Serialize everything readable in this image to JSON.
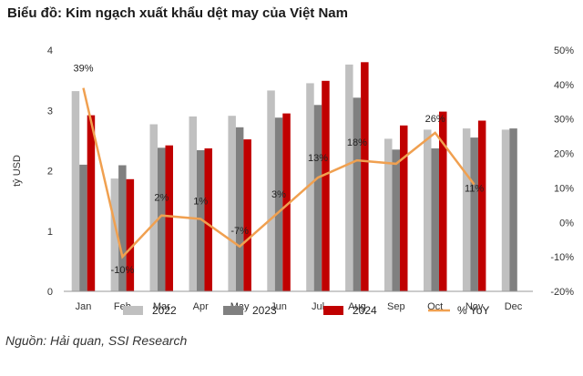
{
  "title": "Biểu đồ: Kim ngạch xuất khẩu dệt may của Việt Nam",
  "source": "Nguồn: Hải quan, SSI Research",
  "chart_data": {
    "type": "bar",
    "categories": [
      "Jan",
      "Feb",
      "Mar",
      "Apr",
      "May",
      "Jun",
      "Jul",
      "Aug",
      "Sep",
      "Oct",
      "Nov",
      "Dec"
    ],
    "series": [
      {
        "name": "2022",
        "type": "bar",
        "axis": "left",
        "color": "#c0c0c0",
        "values": [
          3.32,
          1.87,
          2.77,
          2.9,
          2.91,
          3.33,
          3.45,
          3.76,
          2.53,
          2.68,
          2.7,
          2.68
        ]
      },
      {
        "name": "2023",
        "type": "bar",
        "axis": "left",
        "color": "#808080",
        "values": [
          2.1,
          2.09,
          2.38,
          2.34,
          2.72,
          2.88,
          3.09,
          3.21,
          2.35,
          2.37,
          2.55,
          2.7
        ]
      },
      {
        "name": "2024",
        "type": "bar",
        "axis": "left",
        "color": "#c00000",
        "values": [
          2.92,
          1.86,
          2.42,
          2.37,
          2.52,
          2.95,
          3.49,
          3.8,
          2.75,
          2.98,
          2.83,
          null
        ]
      },
      {
        "name": "% YoY",
        "type": "line",
        "axis": "right",
        "color": "#f0a050",
        "values": [
          39,
          -10,
          2,
          1,
          -7,
          3,
          13,
          18,
          17,
          26,
          11,
          null
        ]
      }
    ],
    "annotations": [
      "39%",
      "-10%",
      "2%",
      "1%",
      "-7%",
      "3%",
      "13%",
      "18%",
      "",
      "26%",
      "11%",
      ""
    ],
    "ylabel": "tỷ USD",
    "ylim": [
      0,
      4
    ],
    "yticks": [
      "0",
      "1",
      "2",
      "3",
      "4"
    ],
    "y2lim": [
      -20,
      50
    ],
    "y2ticks": [
      "-20%",
      "-10%",
      "0%",
      "10%",
      "20%",
      "30%",
      "40%",
      "50%"
    ],
    "legend_position": "bottom",
    "grid": false
  }
}
